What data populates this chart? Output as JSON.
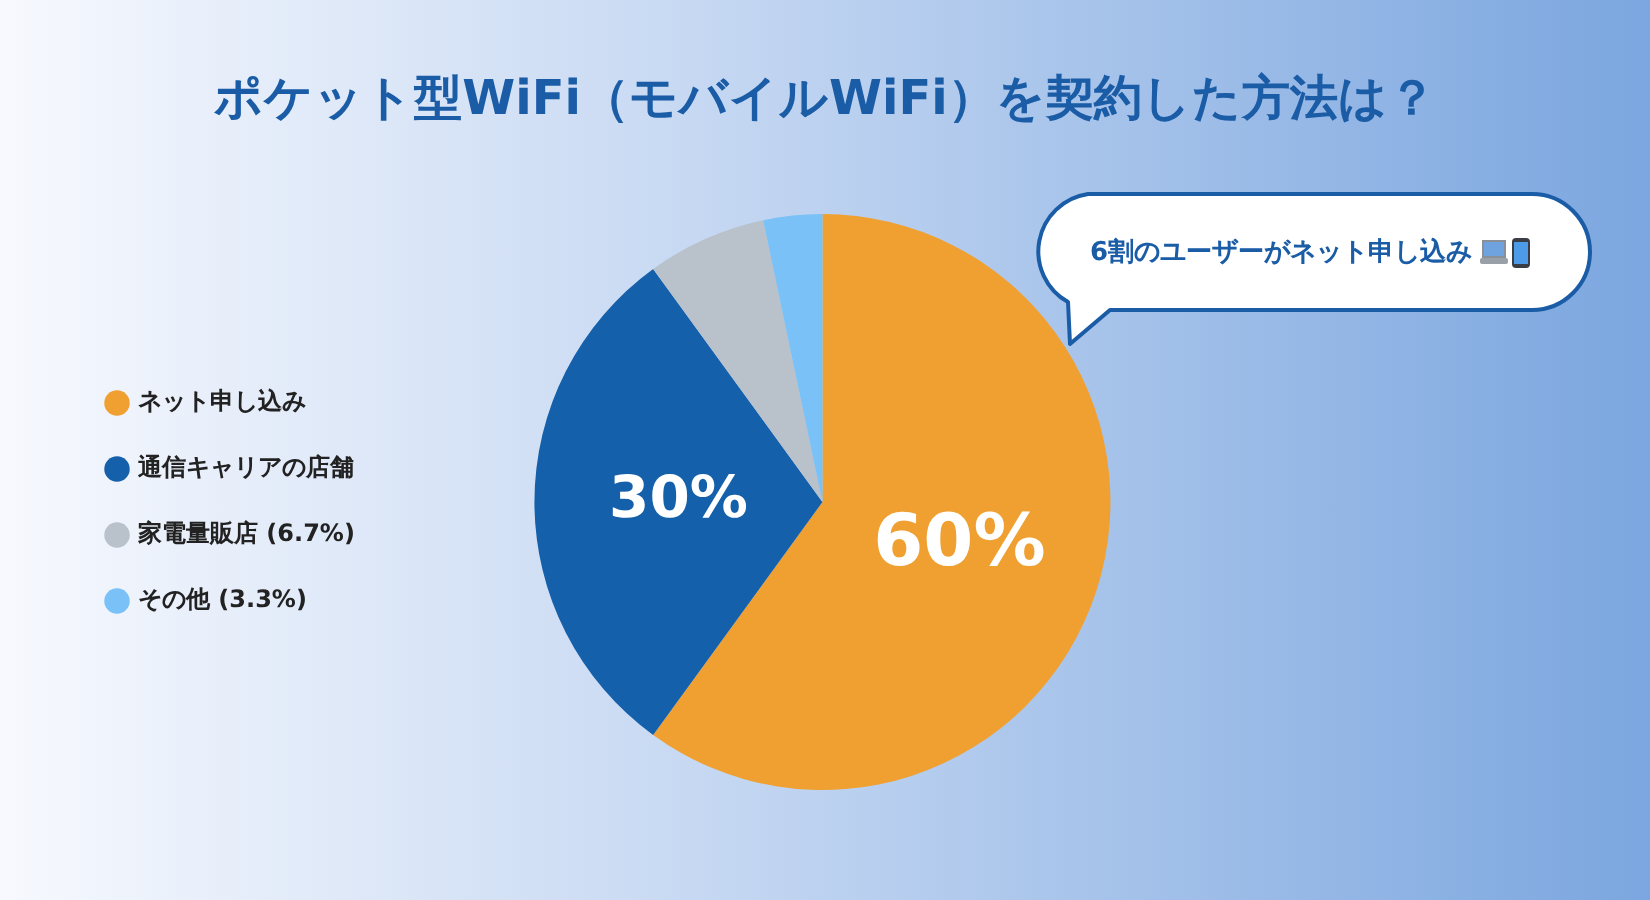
{
  "chart_data": {
    "type": "pie",
    "title": "ポケット型WiFi（モバイルWiFi）を契約した方法は？",
    "categories": [
      "ネット申し込み",
      "通信キャリアの店舗",
      "家電量販店 (6.7%)",
      "その他 (3.3%)"
    ],
    "values": [
      60,
      30,
      6.7,
      3.3
    ],
    "colors": [
      "#efa030",
      "#1560aa",
      "#b9c1cb",
      "#79c1f7"
    ],
    "value_labels": [
      "60%",
      "30%",
      null,
      null
    ],
    "legend": "left",
    "annotations": [
      "6割のユーザーがネット申し込み"
    ]
  }
}
